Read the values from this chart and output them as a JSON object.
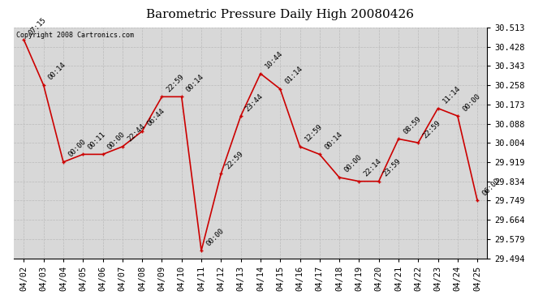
{
  "title": "Barometric Pressure Daily High 20080426",
  "copyright": "Copyright 2008 Cartronics.com",
  "x_labels": [
    "04/02",
    "04/03",
    "04/04",
    "04/05",
    "04/06",
    "04/07",
    "04/08",
    "04/09",
    "04/10",
    "04/11",
    "04/12",
    "04/13",
    "04/14",
    "04/15",
    "04/16",
    "04/17",
    "04/18",
    "04/19",
    "04/20",
    "04/21",
    "04/22",
    "04/23",
    "04/24",
    "04/25"
  ],
  "points": [
    {
      "date": "04/02",
      "time": "07:15",
      "value": 30.458
    },
    {
      "date": "04/03",
      "time": "00:14",
      "value": 30.258
    },
    {
      "date": "04/04",
      "time": "00:00",
      "value": 29.919
    },
    {
      "date": "04/05",
      "time": "00:11",
      "value": 29.953
    },
    {
      "date": "04/06",
      "time": "00:00",
      "value": 29.953
    },
    {
      "date": "04/07",
      "time": "22:44",
      "value": 29.987
    },
    {
      "date": "04/08",
      "time": "06:44",
      "value": 30.055
    },
    {
      "date": "04/09",
      "time": "22:59",
      "value": 30.207
    },
    {
      "date": "04/10",
      "time": "00:14",
      "value": 30.207
    },
    {
      "date": "04/11",
      "time": "00:00",
      "value": 29.528
    },
    {
      "date": "04/12",
      "time": "22:59",
      "value": 29.868
    },
    {
      "date": "04/13",
      "time": "23:44",
      "value": 30.122
    },
    {
      "date": "04/14",
      "time": "10:44",
      "value": 30.309
    },
    {
      "date": "04/15",
      "time": "01:14",
      "value": 30.241
    },
    {
      "date": "04/16",
      "time": "12:59",
      "value": 29.987
    },
    {
      "date": "04/17",
      "time": "00:14",
      "value": 29.953
    },
    {
      "date": "04/18",
      "time": "00:00",
      "value": 29.851
    },
    {
      "date": "04/19",
      "time": "22:14",
      "value": 29.834
    },
    {
      "date": "04/20",
      "time": "23:59",
      "value": 29.834
    },
    {
      "date": "04/21",
      "time": "08:59",
      "value": 30.021
    },
    {
      "date": "04/22",
      "time": "22:59",
      "value": 30.004
    },
    {
      "date": "04/23",
      "time": "11:14",
      "value": 30.156
    },
    {
      "date": "04/24",
      "time": "00:00",
      "value": 30.122
    },
    {
      "date": "04/25",
      "time": "06:00",
      "value": 29.749
    }
  ],
  "y_ticks": [
    29.494,
    29.579,
    29.664,
    29.749,
    29.834,
    29.919,
    30.004,
    30.088,
    30.173,
    30.258,
    30.343,
    30.428,
    30.513
  ],
  "line_color": "#cc0000",
  "marker_color": "#cc0000",
  "bg_color": "#ffffff",
  "plot_bg": "#d8d8d8",
  "grid_color": "#bbbbbb",
  "title_fontsize": 11,
  "tick_fontsize": 7.5,
  "annotation_fontsize": 6.5
}
